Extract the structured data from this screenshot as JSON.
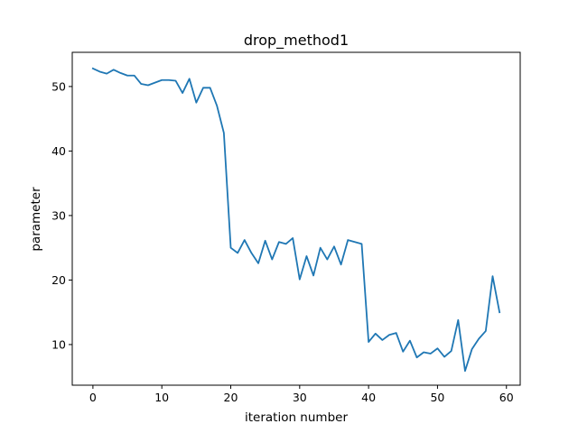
{
  "chart_data": {
    "type": "line",
    "title": "drop_method1",
    "xlabel": "iteration number",
    "ylabel": "parameter",
    "xlim": [
      -3,
      62
    ],
    "ylim": [
      3.7,
      55.3
    ],
    "xticks": [
      0,
      10,
      20,
      30,
      40,
      50,
      60
    ],
    "yticks": [
      10,
      20,
      30,
      40,
      50
    ],
    "grid": false,
    "line_color": "#1f77b4",
    "series": [
      {
        "x": [
          0,
          1,
          2,
          3,
          4,
          5,
          6,
          7,
          8,
          9,
          10,
          11,
          12,
          13,
          14,
          15,
          16,
          17,
          18,
          19,
          20,
          21,
          22,
          23,
          24,
          25,
          26,
          27,
          28,
          29,
          30,
          31,
          32,
          33,
          34,
          35,
          36,
          37,
          38,
          39,
          40,
          41,
          42,
          43,
          44,
          45,
          46,
          47,
          48,
          49,
          50,
          51,
          52,
          53,
          54,
          55,
          56,
          57,
          58,
          59
        ],
        "values": [
          52.8,
          52.3,
          52.0,
          52.6,
          52.1,
          51.7,
          51.7,
          50.4,
          50.2,
          50.6,
          51.0,
          51.0,
          50.9,
          49.0,
          51.2,
          47.5,
          49.8,
          49.8,
          47.0,
          42.8,
          25.0,
          24.2,
          26.2,
          24.2,
          22.6,
          26.1,
          23.2,
          25.9,
          25.6,
          26.5,
          20.1,
          23.7,
          20.7,
          25.0,
          23.2,
          25.2,
          22.4,
          26.2,
          25.9,
          25.6,
          10.4,
          11.7,
          10.7,
          11.5,
          11.8,
          8.9,
          10.6,
          8.0,
          8.8,
          8.6,
          9.4,
          8.1,
          9.0,
          13.8,
          5.9,
          9.3,
          10.9,
          12.1,
          20.6,
          15.0
        ]
      }
    ]
  }
}
